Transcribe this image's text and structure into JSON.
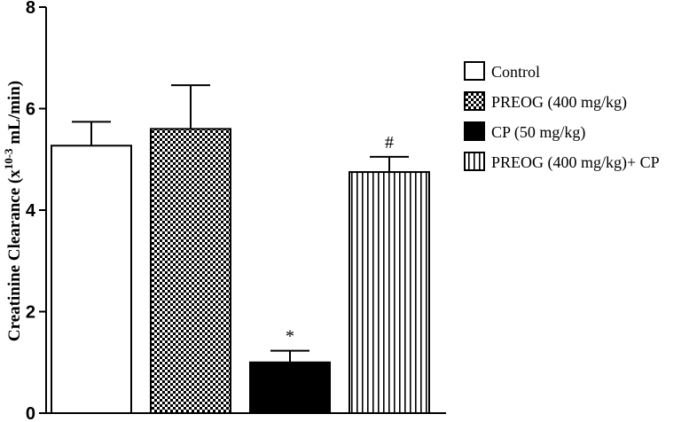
{
  "chart_data": {
    "type": "bar",
    "title": "",
    "xlabel": "",
    "ylabel": {
      "prefix": "Creatinine Clearance (x",
      "superscript": "10-3",
      "suffix": " mL/min)"
    },
    "ylim": [
      0,
      8
    ],
    "yticks": [
      "0",
      "2",
      "4",
      "6",
      "8"
    ],
    "grid": false,
    "legend_position": "right",
    "series": [
      {
        "name": "Control",
        "value": 5.27,
        "error": 0.47,
        "pattern": "white",
        "annotation": ""
      },
      {
        "name": "PREOG (400 mg/kg)",
        "value": 5.6,
        "error": 0.86,
        "pattern": "checker",
        "annotation": ""
      },
      {
        "name": "CP (50 mg/kg)",
        "value": 1.0,
        "error": 0.23,
        "pattern": "black",
        "annotation": "*"
      },
      {
        "name": "PREOG (400 mg/kg)+ CP",
        "value": 4.75,
        "error": 0.3,
        "pattern": "vstripes",
        "annotation": "#"
      }
    ]
  }
}
